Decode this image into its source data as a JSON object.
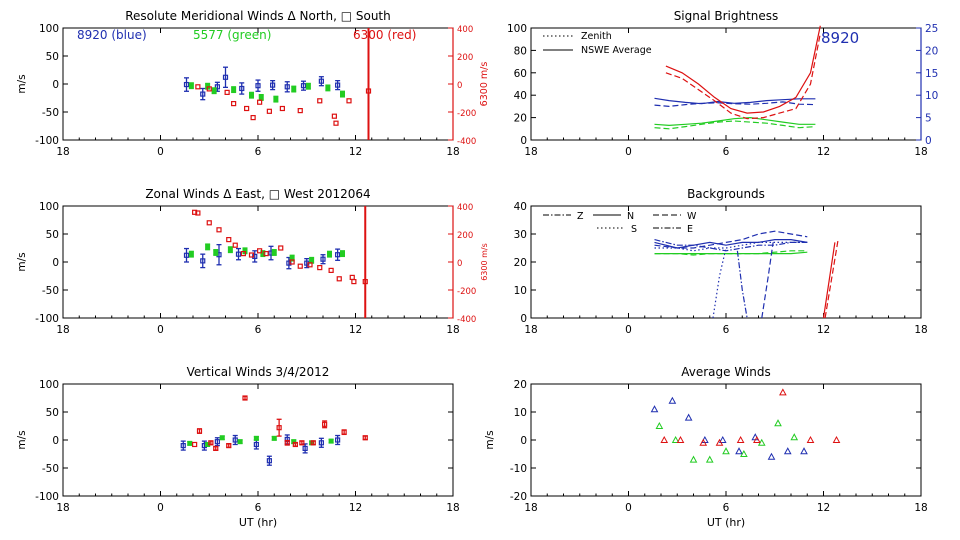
{
  "colors": {
    "blue": "#1f2fb0",
    "green": "#22cc22",
    "red": "#dd1111",
    "axis": "#000000"
  },
  "chart_data": [
    {
      "id": "meridional",
      "type": "scatter",
      "title": "Resolute Meridional Winds Δ North, □ South",
      "ylabel": "m/s",
      "ylabel_right": "6300 m/s",
      "xticks": [
        "18",
        "0",
        "6",
        "12",
        "18"
      ],
      "yticks": [
        "100",
        "50",
        "0",
        "-50",
        "-100"
      ],
      "yticks_right": [
        "400",
        "200",
        "0",
        "-200",
        "-400"
      ],
      "legend": {
        "blue": "8920 (blue)",
        "green": "5577 (green)",
        "red": "6300 (red)"
      },
      "xlim": [
        -6,
        18
      ],
      "ylim": [
        -100,
        100
      ],
      "ylim_right": [
        -400,
        400
      ],
      "series": [
        {
          "name": "8920",
          "color": "blue",
          "x": [
            1.6,
            2.6,
            3.5,
            4.0,
            5.0,
            6.0,
            6.9,
            7.8,
            8.8,
            9.9,
            10.9
          ],
          "y": [
            -1,
            -18,
            -5,
            12,
            -8,
            -3,
            -2,
            -5,
            -3,
            5,
            -2
          ],
          "err": [
            12,
            10,
            8,
            18,
            10,
            10,
            8,
            9,
            8,
            8,
            8
          ]
        },
        {
          "name": "5577",
          "color": "green",
          "x": [
            1.9,
            2.9,
            3.3,
            4.5,
            5.6,
            6.2,
            7.1,
            8.2,
            9.1,
            10.3,
            11.2
          ],
          "y": [
            -3,
            -4,
            -12,
            -10,
            -20,
            -24,
            -27,
            -9,
            -4,
            -7,
            -18
          ],
          "err": [
            5,
            5,
            5,
            5,
            5,
            5,
            5,
            5,
            5,
            5,
            5
          ]
        },
        {
          "name": "6300",
          "color": "red",
          "axis": "right",
          "x": [
            2.3,
            3.0,
            4.1,
            4.5,
            5.3,
            5.7,
            6.1,
            6.7,
            7.5,
            8.6,
            9.8,
            10.7,
            10.8,
            11.6,
            12.8
          ],
          "y": [
            -20,
            -35,
            -60,
            -140,
            -175,
            -240,
            -130,
            -195,
            -175,
            -190,
            -120,
            -230,
            -280,
            -120,
            -50
          ]
        }
      ]
    },
    {
      "id": "zonal",
      "type": "scatter",
      "title": "Zonal Winds Δ East, □ West 2012064",
      "ylabel": "m/s",
      "ylabel_right": "6300 m/s",
      "xticks": [
        "18",
        "0",
        "6",
        "12",
        "18"
      ],
      "yticks": [
        "100",
        "50",
        "0",
        "-50",
        "-100"
      ],
      "yticks_right": [
        "400",
        "200",
        "0",
        "-200",
        "-400"
      ],
      "xlim": [
        -6,
        18
      ],
      "ylim": [
        -100,
        100
      ],
      "ylim_right": [
        -400,
        400
      ],
      "series": [
        {
          "name": "8920",
          "color": "blue",
          "x": [
            1.6,
            2.6,
            3.6,
            4.8,
            5.8,
            6.8,
            7.9,
            9.0,
            10.0,
            10.9
          ],
          "y": [
            12,
            2,
            13,
            14,
            10,
            16,
            -2,
            -2,
            5,
            13
          ],
          "err": [
            12,
            12,
            18,
            10,
            10,
            12,
            10,
            8,
            8,
            10
          ]
        },
        {
          "name": "5577",
          "color": "green",
          "x": [
            1.9,
            2.9,
            3.4,
            4.3,
            5.2,
            6.3,
            7.0,
            8.1,
            9.3,
            10.4,
            11.2
          ],
          "y": [
            14,
            27,
            17,
            22,
            20,
            15,
            17,
            7,
            3,
            14,
            15
          ],
          "err": [
            5,
            5,
            5,
            5,
            5,
            5,
            5,
            5,
            5,
            5,
            5
          ]
        },
        {
          "name": "6300",
          "color": "red",
          "axis": "right",
          "x": [
            2.1,
            2.3,
            3.0,
            3.6,
            4.2,
            4.6,
            5.1,
            5.6,
            6.1,
            6.5,
            7.4,
            8.1,
            8.6,
            9.2,
            9.8,
            10.5,
            11.0,
            11.8,
            11.9,
            12.6
          ],
          "y": [
            355,
            350,
            280,
            230,
            160,
            120,
            60,
            50,
            80,
            60,
            100,
            0,
            -30,
            -20,
            -40,
            -60,
            -120,
            -110,
            -140,
            -140
          ]
        }
      ]
    },
    {
      "id": "vertical",
      "type": "scatter",
      "title": "Vertical Winds 3/4/2012",
      "ylabel": "m/s",
      "xlabel": "UT (hr)",
      "xticks": [
        "18",
        "0",
        "6",
        "12",
        "18"
      ],
      "yticks": [
        "100",
        "50",
        "0",
        "-50",
        "-100"
      ],
      "xlim": [
        -6,
        18
      ],
      "ylim": [
        -100,
        100
      ],
      "series": [
        {
          "name": "8920",
          "color": "blue",
          "x": [
            1.4,
            2.7,
            3.5,
            4.6,
            5.9,
            6.7,
            7.8,
            8.9,
            9.9,
            10.9
          ],
          "y": [
            -10,
            -10,
            -3,
            0,
            -8,
            -37,
            1,
            -15,
            -5,
            0
          ],
          "err": [
            8,
            8,
            7,
            8,
            8,
            8,
            8,
            8,
            8,
            8
          ]
        },
        {
          "name": "5577",
          "color": "green",
          "x": [
            1.8,
            2.9,
            3.8,
            4.9,
            5.9,
            7.0,
            8.2,
            9.3,
            10.5
          ],
          "y": [
            -6,
            -8,
            4,
            -3,
            3,
            3,
            -3,
            -5,
            -2
          ],
          "err": [
            3,
            3,
            3,
            3,
            3,
            3,
            3,
            3,
            3
          ]
        },
        {
          "name": "6300",
          "color": "red",
          "x": [
            2.1,
            2.4,
            3.1,
            3.4,
            4.2,
            5.2,
            7.3,
            7.8,
            8.3,
            8.7,
            9.4,
            10.1,
            11.3,
            12.6
          ],
          "y": [
            -8,
            16,
            -5,
            -15,
            -10,
            75,
            22,
            -5,
            -8,
            -5,
            -5,
            28,
            14,
            4
          ],
          "err": [
            0,
            4,
            3,
            3,
            3,
            3,
            15,
            4,
            3,
            3,
            3,
            6,
            4,
            3
          ]
        }
      ]
    },
    {
      "id": "brightness",
      "type": "line",
      "title": "Signal Brightness",
      "xticks": [
        "18",
        "0",
        "6",
        "12",
        "18"
      ],
      "yticks": [
        "100",
        "80",
        "60",
        "40",
        "20",
        "0"
      ],
      "yticks_right": [
        "25",
        "20",
        "15",
        "10",
        "5",
        "0"
      ],
      "annotation": "8920",
      "legend": {
        "dotted": "Zenith",
        "solid": "NSWE Average"
      },
      "xlim": [
        -6,
        18
      ],
      "ylim": [
        0,
        100
      ],
      "ylim_right": [
        0,
        25
      ],
      "series": [
        {
          "name": "blue-solid",
          "color": "blue",
          "axis": "right",
          "dash": "solid",
          "x": [
            1.6,
            2.5,
            3.5,
            4.5,
            5.5,
            6.5,
            7.5,
            8.5,
            9.5,
            10.5,
            11.5
          ],
          "y": [
            9.3,
            8.8,
            8.4,
            8.1,
            8.6,
            8.2,
            8.4,
            8.8,
            9.0,
            9.2,
            9.2
          ]
        },
        {
          "name": "blue-dashed",
          "color": "blue",
          "axis": "right",
          "dash": "dashed",
          "x": [
            1.6,
            2.5,
            3.5,
            4.5,
            5.5,
            6.5,
            7.5,
            8.5,
            9.5,
            10.5,
            11.5
          ],
          "y": [
            7.8,
            7.5,
            7.9,
            8.2,
            8.3,
            8.1,
            8.0,
            8.2,
            8.5,
            8.0,
            7.9
          ]
        },
        {
          "name": "green-solid",
          "color": "green",
          "dash": "solid",
          "x": [
            1.6,
            2.5,
            3.5,
            4.5,
            5.5,
            6.5,
            7.5,
            8.5,
            9.5,
            10.5,
            11.5
          ],
          "y": [
            14,
            13,
            14,
            15,
            17,
            19,
            20,
            18,
            16,
            14,
            14
          ]
        },
        {
          "name": "green-dashed",
          "color": "green",
          "dash": "dashed",
          "x": [
            1.6,
            2.5,
            3.5,
            4.5,
            5.5,
            6.5,
            7.5,
            8.5,
            9.5,
            10.5,
            11.5
          ],
          "y": [
            11,
            10,
            12,
            14,
            16,
            17,
            16,
            15,
            13,
            11,
            12
          ]
        },
        {
          "name": "red-solid",
          "color": "red",
          "dash": "solid",
          "x": [
            2.3,
            3.3,
            4.3,
            5.3,
            6.3,
            7.3,
            8.3,
            9.3,
            10.3,
            11.2,
            11.8
          ],
          "y": [
            66,
            60,
            50,
            38,
            28,
            24,
            25,
            30,
            38,
            60,
            102
          ]
        },
        {
          "name": "red-dashed",
          "color": "red",
          "dash": "dashed",
          "x": [
            2.3,
            3.3,
            4.3,
            5.3,
            6.3,
            7.3,
            8.3,
            9.3,
            10.3,
            11.2,
            11.8
          ],
          "y": [
            60,
            55,
            45,
            35,
            24,
            19,
            20,
            24,
            28,
            50,
            95
          ]
        }
      ]
    },
    {
      "id": "backgrounds",
      "type": "line",
      "title": "Backgrounds",
      "xticks": [
        "18",
        "0",
        "6",
        "12",
        "18"
      ],
      "yticks": [
        "40",
        "30",
        "20",
        "10",
        "0"
      ],
      "legend": {
        "Z": "Z",
        "N": "N",
        "W": "W",
        "S": "S",
        "E": "E"
      },
      "xlim": [
        -6,
        18
      ],
      "ylim": [
        0,
        40
      ],
      "series": [
        {
          "name": "blue-N",
          "color": "blue",
          "dash": "solid",
          "x": [
            1.6,
            3,
            4,
            5,
            6,
            7,
            8,
            9,
            10,
            11
          ],
          "y": [
            27,
            25,
            26,
            27,
            26,
            27,
            27,
            28,
            28,
            27
          ]
        },
        {
          "name": "blue-W",
          "color": "blue",
          "dash": "dashed",
          "x": [
            1.6,
            3,
            4,
            5,
            6,
            7,
            8,
            9,
            10,
            11
          ],
          "y": [
            26,
            25,
            25,
            26,
            27,
            28,
            30,
            31,
            30,
            29
          ]
        },
        {
          "name": "blue-E",
          "color": "blue",
          "dash": "dashdot",
          "x": [
            1.6,
            3,
            4,
            5,
            6,
            7,
            8,
            9,
            10,
            11
          ],
          "y": [
            28,
            26,
            26,
            25,
            24,
            25,
            26,
            26,
            27,
            27
          ]
        },
        {
          "name": "blue-S",
          "color": "blue",
          "dash": "dotted",
          "x": [
            1.6,
            3,
            4,
            5,
            6,
            7,
            8,
            9,
            10,
            11
          ],
          "y": [
            25,
            25,
            24,
            25,
            25,
            26,
            27,
            27,
            27,
            27
          ]
        },
        {
          "name": "green-N",
          "color": "green",
          "dash": "solid",
          "x": [
            1.6,
            3,
            4,
            5,
            6,
            7,
            8,
            9,
            10,
            11
          ],
          "y": [
            23,
            23,
            23,
            23,
            23,
            23,
            23,
            23,
            23,
            23.5
          ]
        },
        {
          "name": "green-W",
          "color": "green",
          "dash": "dashed",
          "x": [
            1.6,
            3,
            4,
            5,
            6,
            7,
            8,
            9,
            10,
            11
          ],
          "y": [
            23,
            23,
            22.5,
            23,
            23,
            23,
            23,
            23.5,
            24,
            24
          ]
        },
        {
          "name": "blue-dip",
          "color": "blue",
          "dash": "dotted",
          "x": [
            5.2,
            5.6,
            6.0
          ],
          "y": [
            0,
            15,
            25
          ]
        },
        {
          "name": "blue-dip2",
          "color": "blue",
          "dash": "dashdot",
          "x": [
            6.7,
            7.0,
            7.3
          ],
          "y": [
            24,
            10,
            0
          ]
        },
        {
          "name": "blue-dip3",
          "color": "blue",
          "dash": "dashed",
          "x": [
            8.2,
            8.6,
            8.9
          ],
          "y": [
            0,
            15,
            27
          ]
        },
        {
          "name": "red-rise",
          "color": "red",
          "dash": "solid",
          "x": [
            12.0,
            12.7
          ],
          "y": [
            0,
            27
          ]
        },
        {
          "name": "red-rise2",
          "color": "red",
          "dash": "dashed",
          "x": [
            12.1,
            12.9
          ],
          "y": [
            0,
            28
          ]
        }
      ]
    },
    {
      "id": "average",
      "type": "scatter",
      "title": "Average Winds",
      "xlabel": "UT (hr)",
      "ylabel": "m/s",
      "xticks": [
        "18",
        "0",
        "6",
        "12",
        "18"
      ],
      "yticks": [
        "20",
        "10",
        "0",
        "-10",
        "-20"
      ],
      "xlim": [
        -6,
        18
      ],
      "ylim": [
        -20,
        20
      ],
      "series": [
        {
          "name": "blue",
          "color": "blue",
          "x": [
            1.6,
            2.7,
            3.7,
            4.7,
            5.8,
            6.8,
            7.8,
            8.8,
            9.8,
            10.8
          ],
          "y": [
            11,
            14,
            8,
            0,
            0,
            -4,
            1,
            -6,
            -4,
            -4
          ]
        },
        {
          "name": "green",
          "color": "green",
          "x": [
            1.9,
            2.9,
            4.0,
            5.0,
            6.0,
            7.1,
            8.2,
            9.2,
            10.2
          ],
          "y": [
            5,
            0,
            -7,
            -7,
            -4,
            -5,
            -1,
            6,
            1
          ]
        },
        {
          "name": "red",
          "color": "red",
          "x": [
            2.2,
            3.2,
            4.6,
            5.6,
            6.9,
            7.9,
            9.5,
            11.2,
            12.8
          ],
          "y": [
            0,
            0,
            -1,
            -1,
            0,
            0,
            17,
            0,
            0
          ]
        }
      ]
    }
  ]
}
